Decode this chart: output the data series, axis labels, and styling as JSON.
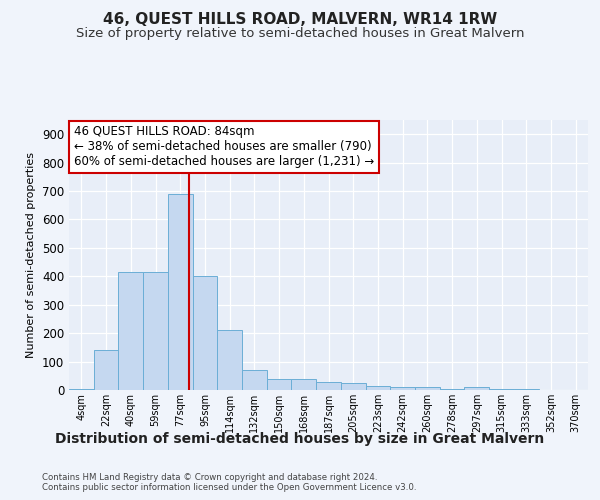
{
  "title": "46, QUEST HILLS ROAD, MALVERN, WR14 1RW",
  "subtitle": "Size of property relative to semi-detached houses in Great Malvern",
  "xlabel": "Distribution of semi-detached houses by size in Great Malvern",
  "ylabel": "Number of semi-detached properties",
  "bar_labels": [
    "4sqm",
    "22sqm",
    "40sqm",
    "59sqm",
    "77sqm",
    "95sqm",
    "114sqm",
    "132sqm",
    "150sqm",
    "168sqm",
    "187sqm",
    "205sqm",
    "223sqm",
    "242sqm",
    "260sqm",
    "278sqm",
    "297sqm",
    "315sqm",
    "333sqm",
    "352sqm",
    "370sqm"
  ],
  "bar_values": [
    5,
    140,
    415,
    415,
    690,
    400,
    210,
    70,
    40,
    40,
    28,
    25,
    15,
    12,
    12,
    5,
    12,
    5,
    2,
    1,
    0
  ],
  "bar_color": "#c5d8f0",
  "bar_edge_color": "#6baed6",
  "red_line_x": 4.35,
  "annotation_title": "46 QUEST HILLS ROAD: 84sqm",
  "annotation_line1": "← 38% of semi-detached houses are smaller (790)",
  "annotation_line2": "60% of semi-detached houses are larger (1,231) →",
  "annotation_box_color": "#ffffff",
  "annotation_box_edge_color": "#cc0000",
  "ylim": [
    0,
    950
  ],
  "yticks": [
    0,
    100,
    200,
    300,
    400,
    500,
    600,
    700,
    800,
    900
  ],
  "footer1": "Contains HM Land Registry data © Crown copyright and database right 2024.",
  "footer2": "Contains public sector information licensed under the Open Government Licence v3.0.",
  "bg_color": "#f0f4fb",
  "plot_bg_color": "#e8eef8",
  "title_fontsize": 11,
  "subtitle_fontsize": 9.5,
  "xlabel_fontsize": 10,
  "ylabel_fontsize": 8
}
